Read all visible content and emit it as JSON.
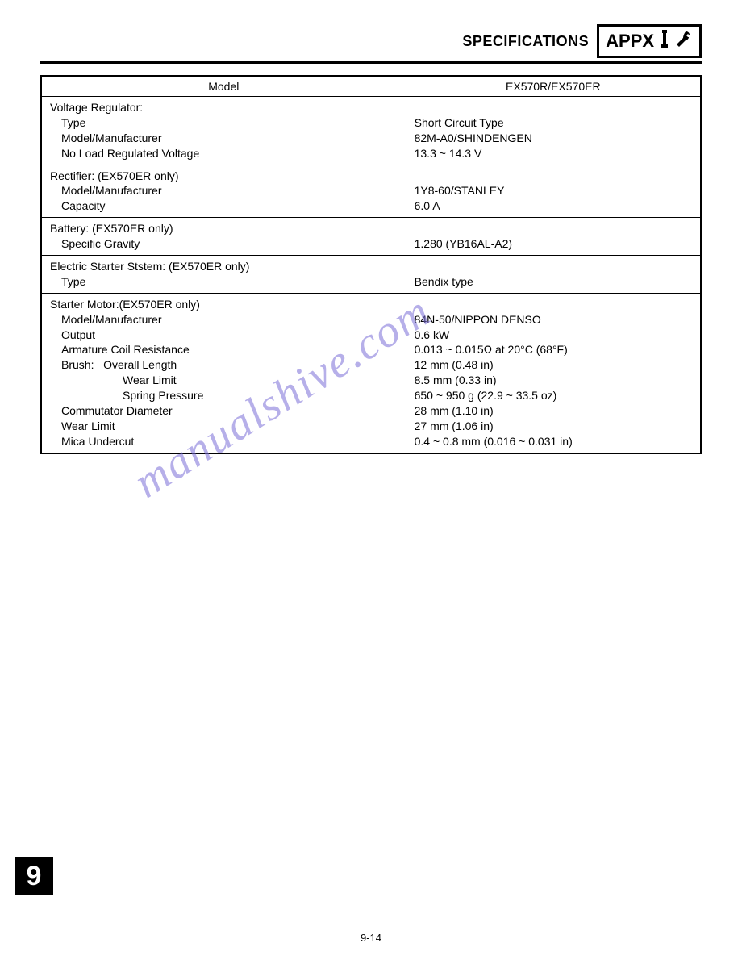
{
  "header": {
    "title": "SPECIFICATIONS",
    "badge": "APPX"
  },
  "table": {
    "columns": [
      "Model",
      "EX570R/EX570ER"
    ],
    "sections": [
      {
        "heading": "Voltage Regulator:",
        "rows": [
          {
            "label": "Type",
            "value": "Short Circuit Type",
            "indent": 1
          },
          {
            "label": "Model/Manufacturer",
            "value": "82M-A0/SHINDENGEN",
            "indent": 1
          },
          {
            "label": "No Load Regulated Voltage",
            "value": "13.3 ~ 14.3 V",
            "indent": 1
          }
        ]
      },
      {
        "heading": "Rectifier: (EX570ER only)",
        "rows": [
          {
            "label": "Model/Manufacturer",
            "value": "1Y8-60/STANLEY",
            "indent": 1
          },
          {
            "label": "Capacity",
            "value": "6.0 A",
            "indent": 1
          }
        ]
      },
      {
        "heading": "Battery: (EX570ER only)",
        "rows": [
          {
            "label": "Specific Gravity",
            "value": "1.280 (YB16AL-A2)",
            "indent": 1
          }
        ]
      },
      {
        "heading": "Electric Starter Ststem: (EX570ER only)",
        "rows": [
          {
            "label": "Type",
            "value": "Bendix type",
            "indent": 1
          }
        ]
      },
      {
        "heading": "Starter Motor:(EX570ER only)",
        "rows": [
          {
            "label": "Model/Manufacturer",
            "value": "84N-50/NIPPON DENSO",
            "indent": 1
          },
          {
            "label": "Output",
            "value": "0.6 kW",
            "indent": 1
          },
          {
            "label": "Armature Coil Resistance",
            "value": "0.013 ~ 0.015Ω at 20°C (68°F)",
            "indent": 1
          },
          {
            "label": "Brush:   Overall Length",
            "value": "12 mm (0.48 in)",
            "indent": 1
          },
          {
            "label": "Wear Limit",
            "value": "8.5 mm (0.33 in)",
            "indent": 3
          },
          {
            "label": "Spring Pressure",
            "value": "650 ~ 950 g (22.9 ~ 33.5 oz)",
            "indent": 3
          },
          {
            "label": "Commutator Diameter",
            "value": "28 mm (1.10 in)",
            "indent": 1
          },
          {
            "label": "Wear Limit",
            "value": "27 mm (1.06 in)",
            "indent": 1
          },
          {
            "label": "Mica Undercut",
            "value": "0.4 ~ 0.8 mm (0.016 ~ 0.031 in)",
            "indent": 1
          }
        ]
      }
    ]
  },
  "watermark": "manualshive.com",
  "chapterBadge": "9",
  "pageNumber": "9-14",
  "colors": {
    "text": "#000000",
    "watermark": "#7b6fd8",
    "background": "#ffffff"
  }
}
